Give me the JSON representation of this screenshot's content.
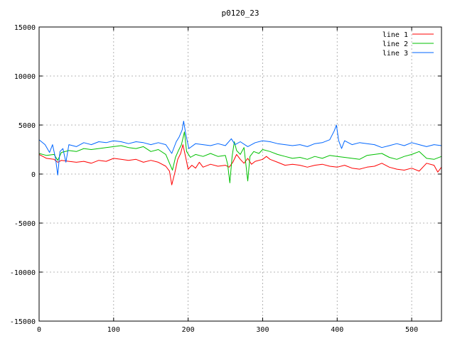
{
  "chart_data": {
    "type": "line",
    "title": "p0120_23",
    "xlabel": "",
    "ylabel": "",
    "xlim": [
      0,
      540
    ],
    "ylim": [
      -15000,
      15000
    ],
    "x_ticks": [
      0,
      100,
      200,
      300,
      400,
      500
    ],
    "y_ticks": [
      -15000,
      -10000,
      -5000,
      0,
      5000,
      10000,
      15000
    ],
    "grid": true,
    "legend_position": "top-right",
    "series": [
      {
        "name": "line 1",
        "color": "#ff0000",
        "points": [
          [
            0,
            2000
          ],
          [
            10,
            1600
          ],
          [
            20,
            1500
          ],
          [
            25,
            1200
          ],
          [
            30,
            1400
          ],
          [
            40,
            1300
          ],
          [
            50,
            1200
          ],
          [
            60,
            1300
          ],
          [
            70,
            1100
          ],
          [
            80,
            1400
          ],
          [
            90,
            1300
          ],
          [
            100,
            1600
          ],
          [
            110,
            1500
          ],
          [
            120,
            1400
          ],
          [
            130,
            1500
          ],
          [
            140,
            1200
          ],
          [
            150,
            1400
          ],
          [
            160,
            1200
          ],
          [
            170,
            800
          ],
          [
            175,
            300
          ],
          [
            178,
            -1100
          ],
          [
            182,
            100
          ],
          [
            186,
            1500
          ],
          [
            190,
            2100
          ],
          [
            193,
            3000
          ],
          [
            197,
            1600
          ],
          [
            200,
            500
          ],
          [
            205,
            900
          ],
          [
            210,
            600
          ],
          [
            215,
            1200
          ],
          [
            220,
            700
          ],
          [
            230,
            1000
          ],
          [
            240,
            800
          ],
          [
            250,
            900
          ],
          [
            255,
            700
          ],
          [
            260,
            1200
          ],
          [
            265,
            2000
          ],
          [
            270,
            1500
          ],
          [
            275,
            1100
          ],
          [
            280,
            1600
          ],
          [
            285,
            1000
          ],
          [
            290,
            1300
          ],
          [
            300,
            1500
          ],
          [
            305,
            1800
          ],
          [
            310,
            1500
          ],
          [
            320,
            1200
          ],
          [
            330,
            900
          ],
          [
            340,
            1000
          ],
          [
            350,
            900
          ],
          [
            360,
            700
          ],
          [
            370,
            900
          ],
          [
            380,
            1000
          ],
          [
            390,
            800
          ],
          [
            400,
            700
          ],
          [
            410,
            900
          ],
          [
            420,
            600
          ],
          [
            430,
            500
          ],
          [
            440,
            700
          ],
          [
            450,
            800
          ],
          [
            460,
            1100
          ],
          [
            470,
            700
          ],
          [
            480,
            500
          ],
          [
            490,
            400
          ],
          [
            500,
            600
          ],
          [
            510,
            300
          ],
          [
            520,
            1100
          ],
          [
            530,
            900
          ],
          [
            535,
            200
          ],
          [
            540,
            700
          ]
        ]
      },
      {
        "name": "line 2",
        "color": "#00c000",
        "points": [
          [
            0,
            2100
          ],
          [
            10,
            1900
          ],
          [
            20,
            2000
          ],
          [
            25,
            1400
          ],
          [
            30,
            2200
          ],
          [
            40,
            2400
          ],
          [
            50,
            2300
          ],
          [
            60,
            2600
          ],
          [
            70,
            2500
          ],
          [
            80,
            2600
          ],
          [
            90,
            2700
          ],
          [
            100,
            2800
          ],
          [
            110,
            2900
          ],
          [
            120,
            2700
          ],
          [
            130,
            2600
          ],
          [
            140,
            2800
          ],
          [
            150,
            2300
          ],
          [
            160,
            2500
          ],
          [
            170,
            2000
          ],
          [
            175,
            1100
          ],
          [
            179,
            400
          ],
          [
            183,
            1700
          ],
          [
            187,
            2400
          ],
          [
            191,
            3000
          ],
          [
            195,
            4300
          ],
          [
            198,
            2300
          ],
          [
            203,
            1700
          ],
          [
            210,
            2000
          ],
          [
            220,
            1800
          ],
          [
            230,
            2100
          ],
          [
            240,
            1800
          ],
          [
            250,
            1900
          ],
          [
            253,
            1000
          ],
          [
            256,
            -900
          ],
          [
            259,
            1800
          ],
          [
            262,
            3300
          ],
          [
            265,
            2400
          ],
          [
            270,
            2000
          ],
          [
            275,
            2700
          ],
          [
            280,
            -700
          ],
          [
            283,
            1800
          ],
          [
            288,
            2300
          ],
          [
            295,
            2100
          ],
          [
            300,
            2500
          ],
          [
            310,
            2300
          ],
          [
            320,
            2000
          ],
          [
            330,
            1800
          ],
          [
            340,
            1600
          ],
          [
            350,
            1700
          ],
          [
            360,
            1500
          ],
          [
            370,
            1800
          ],
          [
            380,
            1600
          ],
          [
            390,
            1900
          ],
          [
            400,
            1800
          ],
          [
            410,
            1700
          ],
          [
            420,
            1600
          ],
          [
            430,
            1500
          ],
          [
            440,
            1900
          ],
          [
            450,
            2000
          ],
          [
            460,
            2100
          ],
          [
            470,
            1700
          ],
          [
            480,
            1500
          ],
          [
            490,
            1800
          ],
          [
            500,
            2000
          ],
          [
            510,
            2300
          ],
          [
            520,
            1600
          ],
          [
            530,
            1500
          ],
          [
            540,
            1800
          ]
        ]
      },
      {
        "name": "line 3",
        "color": "#0066ff",
        "points": [
          [
            0,
            3500
          ],
          [
            8,
            3000
          ],
          [
            14,
            2200
          ],
          [
            18,
            3000
          ],
          [
            22,
            1600
          ],
          [
            25,
            -100
          ],
          [
            28,
            2300
          ],
          [
            32,
            2600
          ],
          [
            36,
            1200
          ],
          [
            40,
            3000
          ],
          [
            50,
            2800
          ],
          [
            60,
            3200
          ],
          [
            70,
            3000
          ],
          [
            80,
            3300
          ],
          [
            90,
            3200
          ],
          [
            100,
            3400
          ],
          [
            110,
            3300
          ],
          [
            120,
            3100
          ],
          [
            130,
            3300
          ],
          [
            140,
            3200
          ],
          [
            150,
            3000
          ],
          [
            160,
            3200
          ],
          [
            170,
            3000
          ],
          [
            178,
            2100
          ],
          [
            184,
            3300
          ],
          [
            188,
            3800
          ],
          [
            192,
            4500
          ],
          [
            194,
            5400
          ],
          [
            197,
            4000
          ],
          [
            201,
            2600
          ],
          [
            210,
            3100
          ],
          [
            220,
            3000
          ],
          [
            230,
            2900
          ],
          [
            240,
            3100
          ],
          [
            250,
            2900
          ],
          [
            258,
            3600
          ],
          [
            263,
            3000
          ],
          [
            270,
            3300
          ],
          [
            280,
            2800
          ],
          [
            290,
            3200
          ],
          [
            300,
            3400
          ],
          [
            310,
            3300
          ],
          [
            320,
            3100
          ],
          [
            330,
            3000
          ],
          [
            340,
            2900
          ],
          [
            350,
            3000
          ],
          [
            360,
            2800
          ],
          [
            370,
            3100
          ],
          [
            380,
            3200
          ],
          [
            390,
            3500
          ],
          [
            396,
            4400
          ],
          [
            399,
            5000
          ],
          [
            402,
            3400
          ],
          [
            406,
            2600
          ],
          [
            410,
            3400
          ],
          [
            420,
            3000
          ],
          [
            430,
            3200
          ],
          [
            440,
            3100
          ],
          [
            450,
            3000
          ],
          [
            460,
            2700
          ],
          [
            470,
            2900
          ],
          [
            480,
            3100
          ],
          [
            490,
            2900
          ],
          [
            500,
            3200
          ],
          [
            510,
            3000
          ],
          [
            520,
            2800
          ],
          [
            530,
            3000
          ],
          [
            540,
            2900
          ]
        ]
      }
    ]
  }
}
